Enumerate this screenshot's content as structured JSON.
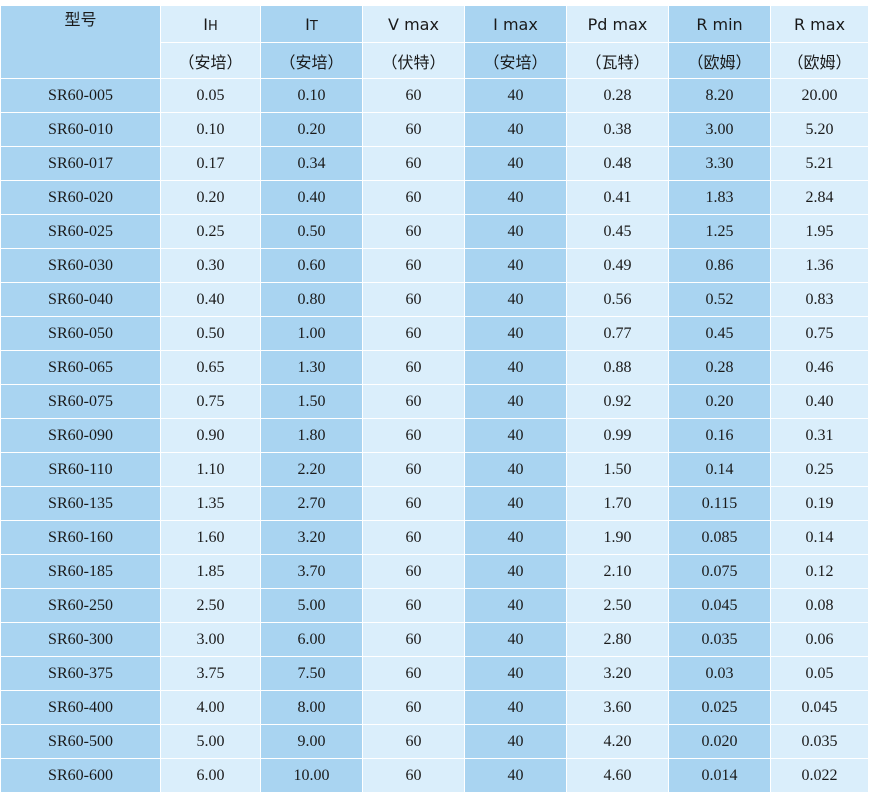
{
  "table": {
    "headers": [
      {
        "name": "型号",
        "unit": ""
      },
      {
        "name_main": "I",
        "name_sub": "H",
        "unit": "（安培）"
      },
      {
        "name_main": "I",
        "name_sub": "T",
        "unit": "（安培）"
      },
      {
        "name": "V max",
        "unit": "（伏特）"
      },
      {
        "name": "I max",
        "unit": "（安培）"
      },
      {
        "name": "Pd max",
        "unit": "（瓦特）"
      },
      {
        "name": "R min",
        "unit": "（欧姆）"
      },
      {
        "name": "R max",
        "unit": "（欧姆）"
      }
    ],
    "rows": [
      [
        "SR60-005",
        "0.05",
        "0.10",
        "60",
        "40",
        "0.28",
        "8.20",
        "20.00"
      ],
      [
        "SR60-010",
        "0.10",
        "0.20",
        "60",
        "40",
        "0.38",
        "3.00",
        "5.20"
      ],
      [
        "SR60-017",
        "0.17",
        "0.34",
        "60",
        "40",
        "0.48",
        "3.30",
        "5.21"
      ],
      [
        "SR60-020",
        "0.20",
        "0.40",
        "60",
        "40",
        "0.41",
        "1.83",
        "2.84"
      ],
      [
        "SR60-025",
        "0.25",
        "0.50",
        "60",
        "40",
        "0.45",
        "1.25",
        "1.95"
      ],
      [
        "SR60-030",
        "0.30",
        "0.60",
        "60",
        "40",
        "0.49",
        "0.86",
        "1.36"
      ],
      [
        "SR60-040",
        "0.40",
        "0.80",
        "60",
        "40",
        "0.56",
        "0.52",
        "0.83"
      ],
      [
        "SR60-050",
        "0.50",
        "1.00",
        "60",
        "40",
        "0.77",
        "0.45",
        "0.75"
      ],
      [
        "SR60-065",
        "0.65",
        "1.30",
        "60",
        "40",
        "0.88",
        "0.28",
        "0.46"
      ],
      [
        "SR60-075",
        "0.75",
        "1.50",
        "60",
        "40",
        "0.92",
        "0.20",
        "0.40"
      ],
      [
        "SR60-090",
        "0.90",
        "1.80",
        "60",
        "40",
        "0.99",
        "0.16",
        "0.31"
      ],
      [
        "SR60-110",
        "1.10",
        "2.20",
        "60",
        "40",
        "1.50",
        "0.14",
        "0.25"
      ],
      [
        "SR60-135",
        "1.35",
        "2.70",
        "60",
        "40",
        "1.70",
        "0.115",
        "0.19"
      ],
      [
        "SR60-160",
        "1.60",
        "3.20",
        "60",
        "40",
        "1.90",
        "0.085",
        "0.14"
      ],
      [
        "SR60-185",
        "1.85",
        "3.70",
        "60",
        "40",
        "2.10",
        "0.075",
        "0.12"
      ],
      [
        "SR60-250",
        "2.50",
        "5.00",
        "60",
        "40",
        "2.50",
        "0.045",
        "0.08"
      ],
      [
        "SR60-300",
        "3.00",
        "6.00",
        "60",
        "40",
        "2.80",
        "0.035",
        "0.06"
      ],
      [
        "SR60-375",
        "3.75",
        "7.50",
        "60",
        "40",
        "3.20",
        "0.03",
        "0.05"
      ],
      [
        "SR60-400",
        "4.00",
        "8.00",
        "60",
        "40",
        "3.60",
        "0.025",
        "0.045"
      ],
      [
        "SR60-500",
        "5.00",
        "9.00",
        "60",
        "40",
        "4.20",
        "0.020",
        "0.035"
      ],
      [
        "SR60-600",
        "6.00",
        "10.00",
        "60",
        "40",
        "4.60",
        "0.014",
        "0.022"
      ]
    ]
  },
  "colors": {
    "dark_column": "#a9d4f1",
    "light_column": "#daeefb",
    "grid_line": "#ffffff",
    "text": "#1a1a1a"
  }
}
